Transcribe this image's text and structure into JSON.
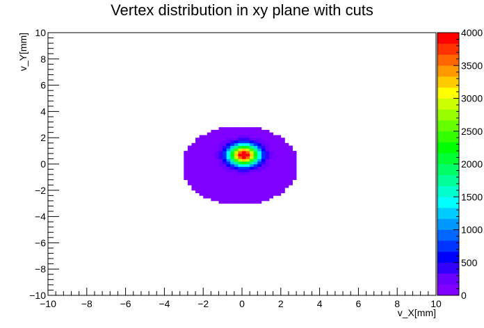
{
  "chart_data": {
    "type": "heatmap",
    "title": "Vertex distribution in xy plane with cuts",
    "xlabel": "v_X[mm]",
    "ylabel": "v_Y[mm]",
    "xlim": [
      -10,
      10
    ],
    "ylim": [
      -10,
      10
    ],
    "x_ticks": [
      -10,
      -8,
      -6,
      -4,
      -2,
      0,
      2,
      4,
      6,
      8,
      10
    ],
    "y_ticks": [
      -10,
      -8,
      -6,
      -4,
      -2,
      0,
      2,
      4,
      6,
      8,
      10
    ],
    "x_tick_labels": [
      "−10",
      "−8",
      "−6",
      "−4",
      "−2",
      "0",
      "2",
      "4",
      "6",
      "8",
      "10"
    ],
    "y_tick_labels": [
      "−10",
      "−8",
      "−6",
      "−4",
      "−2",
      "0",
      "2",
      "4",
      "6",
      "8",
      "10"
    ],
    "bin_width_mm": 0.2,
    "z_range": [
      0,
      4000
    ],
    "z_tick_labels": [
      "0",
      "500",
      "1000",
      "1500",
      "2000",
      "2500",
      "3000",
      "3500",
      "4000"
    ],
    "z_ticks": [
      0,
      500,
      1000,
      1500,
      2000,
      2500,
      3000,
      3500,
      4000
    ],
    "distribution": {
      "peak_center_mm": [
        0.1,
        0.7
      ],
      "peak_value": 4050,
      "core_sigma_mm": 0.55,
      "halo_value_at_center": 60,
      "halo_sigma_mm": 1.6,
      "cut_radius_mm": 3.0,
      "cut_center_mm": [
        -0.1,
        -0.1
      ],
      "cut_y_range_mm": [
        -2.9,
        2.9
      ],
      "cut_x_range_mm": [
        -3.0,
        3.0
      ]
    },
    "palette": [
      "#7f00ff",
      "#6a00ff",
      "#3300ff",
      "#0000ff",
      "#0033ff",
      "#0066ff",
      "#0099ff",
      "#00ccff",
      "#00ffff",
      "#00ffcc",
      "#00ff99",
      "#00ff66",
      "#00ff33",
      "#00ff00",
      "#33ff00",
      "#66ff00",
      "#99ff00",
      "#ccff00",
      "#ffff00",
      "#ffcc00",
      "#ff9900",
      "#ff6600",
      "#ff3300",
      "#ff0000"
    ],
    "grid": false,
    "legend": "colorbar-right"
  }
}
